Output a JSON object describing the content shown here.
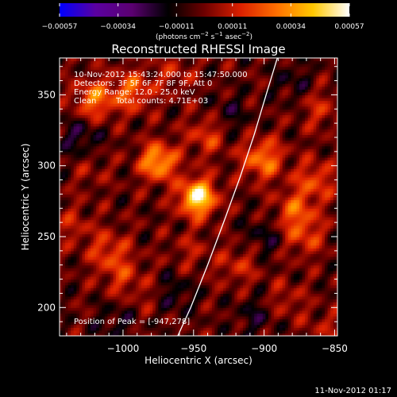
{
  "chart_data": {
    "type": "heatmap",
    "title": "Reconstructed RHESSI Image",
    "xlabel": "Heliocentric X (arcsec)",
    "ylabel": "Heliocentric Y (arcsec)",
    "xlim": [
      -1045,
      -848
    ],
    "ylim": [
      180,
      376
    ],
    "x_ticks": [
      -1000,
      -950,
      -900,
      -850
    ],
    "x_tick_labels": [
      "−1000",
      "−950",
      "−900",
      "−850"
    ],
    "y_ticks": [
      200,
      250,
      300,
      350
    ],
    "y_tick_labels": [
      "200",
      "250",
      "300",
      "350"
    ],
    "colorbar": {
      "label_main": "(photons cm",
      "label_sup1": "−2",
      "label_mid1": " s",
      "label_sup2": "−1",
      "label_mid2": " asec",
      "label_sup3": "−2",
      "label_end": ")",
      "min": -0.00057,
      "max": 0.00057,
      "ticks": [
        -0.00057,
        -0.00034,
        -0.00011,
        0.00011,
        0.00034,
        0.00057
      ],
      "tick_labels": [
        "−0.00057",
        "−0.00034",
        "−0.00011",
        "0.00011",
        "0.00034",
        "0.00057"
      ],
      "colormap": [
        "#0000ff",
        "#5a00a0",
        "#5a0070",
        "#000000",
        "#6e0000",
        "#dc2000",
        "#ff7000",
        "#ffc800",
        "#ffffff"
      ]
    },
    "annotations": {
      "time_range": "10-Nov-2012 15:43:24.000 to 15:47:50.000",
      "detectors": "Detectors: 3F 5F 6F 7F 8F 9F, Att 0",
      "energy": "Energy Range: 12.0 - 25.0 keV",
      "method": "Clean",
      "counts": "Total counts: 4.71E+03",
      "peak": "Position of Peak = [-947,278]"
    },
    "peak": [
      -947,
      278
    ],
    "limb_curve": [
      [
        -963,
        176
      ],
      [
        -952,
        200
      ],
      [
        -940,
        230
      ],
      [
        -928,
        262
      ],
      [
        -917,
        292
      ],
      [
        -907,
        322
      ],
      [
        -898,
        352
      ],
      [
        -890,
        378
      ]
    ],
    "sources": [
      {
        "x": -947,
        "y": 278,
        "intensity": 0.00057
      },
      {
        "x": -975,
        "y": 303,
        "intensity": 0.00042
      },
      {
        "x": -1020,
        "y": 347,
        "intensity": 0.0003
      },
      {
        "x": -993,
        "y": 353,
        "intensity": 0.00026
      },
      {
        "x": -901,
        "y": 305,
        "intensity": 0.00032
      },
      {
        "x": -940,
        "y": 322,
        "intensity": 0.0002
      },
      {
        "x": -878,
        "y": 268,
        "intensity": 0.00024
      },
      {
        "x": -864,
        "y": 290,
        "intensity": 0.00022
      },
      {
        "x": -871,
        "y": 250,
        "intensity": 0.00018
      },
      {
        "x": -1010,
        "y": 240,
        "intensity": 0.0002
      },
      {
        "x": -1000,
        "y": 222,
        "intensity": 0.00015
      },
      {
        "x": -1035,
        "y": 258,
        "intensity": 0.00012
      },
      {
        "x": -918,
        "y": 230,
        "intensity": 0.00015
      },
      {
        "x": -885,
        "y": 205,
        "intensity": 0.00012
      },
      {
        "x": -980,
        "y": 208,
        "intensity": 8e-05
      },
      {
        "x": -1023,
        "y": 298,
        "intensity": 8e-05
      },
      {
        "x": -963,
        "y": 365,
        "intensity": 0.00012
      },
      {
        "x": -860,
        "y": 340,
        "intensity": 0.00014
      },
      {
        "x": -856,
        "y": 185,
        "intensity": 0.0001
      },
      {
        "x": -952,
        "y": 240,
        "intensity": 0.0001
      }
    ],
    "negative_regions": [
      {
        "x": -1030,
        "y": 320,
        "intensity": -0.00016
      },
      {
        "x": -925,
        "y": 335,
        "intensity": -0.00012
      },
      {
        "x": -880,
        "y": 360,
        "intensity": -0.0001
      },
      {
        "x": -1005,
        "y": 190,
        "intensity": -0.0001
      },
      {
        "x": -900,
        "y": 250,
        "intensity": -0.00012
      },
      {
        "x": -965,
        "y": 210,
        "intensity": -0.00014
      },
      {
        "x": -905,
        "y": 195,
        "intensity": -0.00012
      }
    ]
  },
  "footer": {
    "timestamp": "11-Nov-2012 01:17"
  }
}
